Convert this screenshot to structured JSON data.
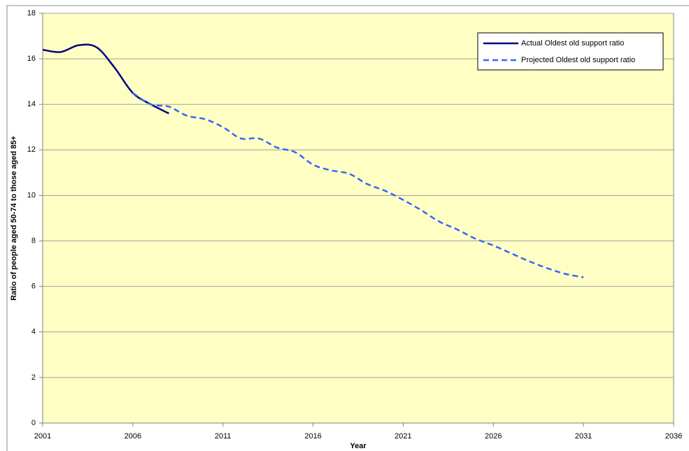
{
  "chart_data": {
    "type": "line",
    "x_label": "Year",
    "y_label": "Ratio of people aged 50-74 to those aged 85+",
    "xlim": [
      2001,
      2036
    ],
    "xticks": [
      2001,
      2006,
      2011,
      2016,
      2021,
      2026,
      2031,
      2036
    ],
    "ylim": [
      0,
      18
    ],
    "yticks": [
      0,
      2,
      4,
      6,
      8,
      10,
      12,
      14,
      16,
      18
    ],
    "grid": true,
    "background": "#ffffc4",
    "legend_position": "upper right",
    "series": [
      {
        "name": "Actual Oldest old support ratio",
        "color": "#000080",
        "line_style": "solid",
        "x": [
          2001,
          2002,
          2003,
          2004,
          2005,
          2006,
          2007,
          2008
        ],
        "values": [
          16.4,
          16.3,
          16.6,
          16.5,
          15.6,
          14.5,
          14.0,
          13.6
        ]
      },
      {
        "name": "Projected Oldest old support ratio",
        "color": "#3366ff",
        "line_style": "dashed",
        "x": [
          2006,
          2007,
          2008,
          2009,
          2010,
          2011,
          2012,
          2013,
          2014,
          2015,
          2016,
          2017,
          2018,
          2019,
          2020,
          2021,
          2022,
          2023,
          2024,
          2025,
          2026,
          2027,
          2028,
          2029,
          2030,
          2031
        ],
        "values": [
          14.5,
          14.0,
          13.9,
          13.5,
          13.35,
          13.0,
          12.5,
          12.5,
          12.1,
          11.9,
          11.35,
          11.1,
          10.95,
          10.5,
          10.2,
          9.8,
          9.35,
          8.85,
          8.5,
          8.1,
          7.8,
          7.45,
          7.1,
          6.8,
          6.55,
          6.4
        ]
      }
    ]
  }
}
